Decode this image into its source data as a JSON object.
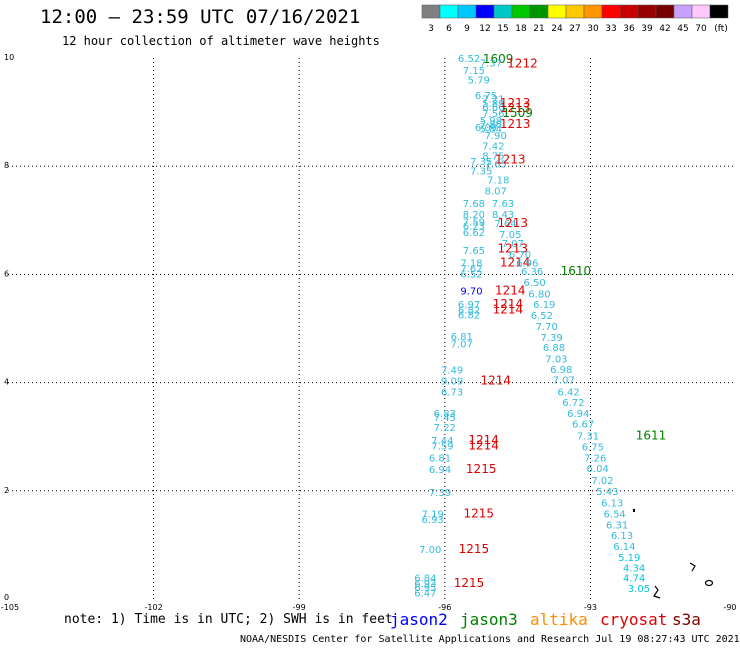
{
  "title": "12:00 – 23:59 UTC 07/16/2021",
  "subtitle": "12 hour collection of altimeter wave heights",
  "footer": "NOAA/NESDIS Center for Satellite Applications and Research   Jul 19 08:27:43 UTC 2021",
  "note": "note: 1) Time is in UTC; 2) SWH is in feet",
  "legend": {
    "labels": [
      "3",
      "6",
      "9",
      "12",
      "15",
      "18",
      "21",
      "24",
      "27",
      "30",
      "33",
      "36",
      "39",
      "42",
      "45",
      "70",
      "(ft)"
    ],
    "colors": [
      "#808080",
      "#00ffff",
      "#00c8ff",
      "#0000ff",
      "#00c8c8",
      "#00c800",
      "#009600",
      "#ffff00",
      "#ffc800",
      "#ff9600",
      "#ff0000",
      "#c80000",
      "#960000",
      "#780000",
      "#c8a0ff",
      "#ffc8ff",
      "#000000"
    ]
  },
  "satellites": [
    {
      "name": "jason2",
      "color": "#0000ff"
    },
    {
      "name": "jason3",
      "color": "#008000"
    },
    {
      "name": "altika",
      "color": "#ff8c00"
    },
    {
      "name": "cryosat",
      "color": "#e00000"
    },
    {
      "name": "s3a",
      "color": "#800000"
    }
  ],
  "axes": {
    "x_ticks": [
      "-105",
      "-102",
      "-99",
      "-96",
      "-93",
      "-90"
    ],
    "y_ticks": [
      "0",
      "2",
      "4",
      "6",
      "8",
      "10"
    ]
  },
  "chart_data": {
    "type": "scatter",
    "x_range": [
      -105,
      -90
    ],
    "y_range": [
      0,
      10
    ],
    "points": [
      {
        "x": -95.5,
        "y": 10.0,
        "t": "6.52",
        "c": "#33bbdd"
      },
      {
        "x": -94.9,
        "y": 9.98,
        "t": "1609",
        "c": "#008000"
      },
      {
        "x": -95.05,
        "y": 9.92,
        "t": "7.37",
        "c": "#33bbdd"
      },
      {
        "x": -94.4,
        "y": 9.9,
        "t": "1212",
        "c": "#e00000"
      },
      {
        "x": -95.4,
        "y": 9.78,
        "t": "7.15",
        "c": "#33bbdd"
      },
      {
        "x": -95.3,
        "y": 9.6,
        "t": "5.79",
        "c": "#33bbdd"
      },
      {
        "x": -95.15,
        "y": 9.32,
        "t": "6.75",
        "c": "#33bbdd"
      },
      {
        "x": -95.0,
        "y": 9.25,
        "t": "7.21",
        "c": "#33bbdd"
      },
      {
        "x": -95.0,
        "y": 9.17,
        "t": "5.89",
        "c": "#33bbdd"
      },
      {
        "x": -95.0,
        "y": 9.1,
        "t": "6.66",
        "c": "#33bbdd"
      },
      {
        "x": -94.55,
        "y": 9.17,
        "t": "1213",
        "c": "#e00000"
      },
      {
        "x": -94.55,
        "y": 9.08,
        "t": "1213",
        "c": "#e00000"
      },
      {
        "x": -94.5,
        "y": 8.98,
        "t": "1509",
        "c": "#008000"
      },
      {
        "x": -95.0,
        "y": 8.98,
        "t": "7.56",
        "c": "#33bbdd"
      },
      {
        "x": -95.05,
        "y": 8.85,
        "t": "5.98",
        "c": "#33bbdd"
      },
      {
        "x": -95.05,
        "y": 8.78,
        "t": "7.86",
        "c": "#33bbdd"
      },
      {
        "x": -95.15,
        "y": 8.72,
        "t": "6.09",
        "c": "#33bbdd"
      },
      {
        "x": -95.05,
        "y": 8.7,
        "t": "5.84",
        "c": "#33bbdd"
      },
      {
        "x": -94.55,
        "y": 8.78,
        "t": "1213",
        "c": "#e00000"
      },
      {
        "x": -94.95,
        "y": 8.58,
        "t": "7.90",
        "c": "#33bbdd"
      },
      {
        "x": -95.0,
        "y": 8.38,
        "t": "7.42",
        "c": "#33bbdd"
      },
      {
        "x": -95.0,
        "y": 8.2,
        "t": "8.75",
        "c": "#33bbdd"
      },
      {
        "x": -95.25,
        "y": 8.1,
        "t": "7.35",
        "c": "#33bbdd"
      },
      {
        "x": -94.95,
        "y": 8.05,
        "t": "7.65",
        "c": "#33bbdd"
      },
      {
        "x": -95.25,
        "y": 7.92,
        "t": "7.35",
        "c": "#33bbdd"
      },
      {
        "x": -94.65,
        "y": 8.12,
        "t": "1213",
        "c": "#e00000"
      },
      {
        "x": -94.9,
        "y": 7.75,
        "t": "7.18",
        "c": "#33bbdd"
      },
      {
        "x": -94.95,
        "y": 7.55,
        "t": "8.07",
        "c": "#33bbdd"
      },
      {
        "x": -95.4,
        "y": 7.32,
        "t": "7.68",
        "c": "#33bbdd"
      },
      {
        "x": -94.8,
        "y": 7.32,
        "t": "7.63",
        "c": "#33bbdd"
      },
      {
        "x": -95.4,
        "y": 7.12,
        "t": "8.20",
        "c": "#33bbdd"
      },
      {
        "x": -94.8,
        "y": 7.12,
        "t": "8.43",
        "c": "#33bbdd"
      },
      {
        "x": -95.4,
        "y": 6.98,
        "t": "7.59",
        "c": "#33bbdd"
      },
      {
        "x": -95.4,
        "y": 6.9,
        "t": "6.23",
        "c": "#33bbdd"
      },
      {
        "x": -94.75,
        "y": 6.95,
        "t": "7.64",
        "c": "#33bbdd"
      },
      {
        "x": -95.4,
        "y": 6.78,
        "t": "6.62",
        "c": "#33bbdd"
      },
      {
        "x": -94.6,
        "y": 6.95,
        "t": "1213",
        "c": "#e00000"
      },
      {
        "x": -94.65,
        "y": 6.75,
        "t": "7.05",
        "c": "#33bbdd"
      },
      {
        "x": -94.6,
        "y": 6.58,
        "t": "7.07",
        "c": "#33bbdd"
      },
      {
        "x": -95.4,
        "y": 6.45,
        "t": "7.65",
        "c": "#33bbdd"
      },
      {
        "x": -94.6,
        "y": 6.48,
        "t": "1213",
        "c": "#e00000"
      },
      {
        "x": -94.45,
        "y": 6.38,
        "t": "6.70",
        "c": "#33bbdd"
      },
      {
        "x": -95.45,
        "y": 6.22,
        "t": "7.18",
        "c": "#33bbdd"
      },
      {
        "x": -94.55,
        "y": 6.22,
        "t": "1214",
        "c": "#e00000"
      },
      {
        "x": -94.3,
        "y": 6.22,
        "t": "6.96",
        "c": "#33bbdd"
      },
      {
        "x": -95.45,
        "y": 6.12,
        "t": "7.62",
        "c": "#33bbdd"
      },
      {
        "x": -95.45,
        "y": 6.02,
        "t": "6.52",
        "c": "#33bbdd"
      },
      {
        "x": -94.2,
        "y": 6.06,
        "t": "6.36",
        "c": "#33bbdd"
      },
      {
        "x": -93.3,
        "y": 6.06,
        "t": "1610",
        "c": "#008000"
      },
      {
        "x": -94.15,
        "y": 5.86,
        "t": "6.50",
        "c": "#33bbdd"
      },
      {
        "x": -95.45,
        "y": 5.7,
        "t": "9.70",
        "c": "#0000ff"
      },
      {
        "x": -94.65,
        "y": 5.7,
        "t": "1214",
        "c": "#e00000"
      },
      {
        "x": -94.05,
        "y": 5.65,
        "t": "6.80",
        "c": "#33bbdd"
      },
      {
        "x": -95.5,
        "y": 5.45,
        "t": "6.97",
        "c": "#33bbdd"
      },
      {
        "x": -94.7,
        "y": 5.45,
        "t": "1214",
        "c": "#e00000"
      },
      {
        "x": -94.7,
        "y": 5.35,
        "t": "1214",
        "c": "#e00000"
      },
      {
        "x": -95.5,
        "y": 5.35,
        "t": "6.82",
        "c": "#33bbdd"
      },
      {
        "x": -95.5,
        "y": 5.26,
        "t": "6.82",
        "c": "#33bbdd"
      },
      {
        "x": -93.95,
        "y": 5.45,
        "t": "6.19",
        "c": "#33bbdd"
      },
      {
        "x": -94.0,
        "y": 5.25,
        "t": "6.52",
        "c": "#33bbdd"
      },
      {
        "x": -93.9,
        "y": 5.05,
        "t": "7.70",
        "c": "#33bbdd"
      },
      {
        "x": -95.65,
        "y": 4.86,
        "t": "6.81",
        "c": "#33bbdd"
      },
      {
        "x": -93.8,
        "y": 4.84,
        "t": "7.39",
        "c": "#33bbdd"
      },
      {
        "x": -95.65,
        "y": 4.72,
        "t": "7.07",
        "c": "#33bbdd"
      },
      {
        "x": -93.75,
        "y": 4.66,
        "t": "6.88",
        "c": "#33bbdd"
      },
      {
        "x": -93.7,
        "y": 4.45,
        "t": "7.03",
        "c": "#33bbdd"
      },
      {
        "x": -95.85,
        "y": 4.24,
        "t": "7.49",
        "c": "#33bbdd"
      },
      {
        "x": -93.6,
        "y": 4.25,
        "t": "6.98",
        "c": "#33bbdd"
      },
      {
        "x": -95.85,
        "y": 4.04,
        "t": "9.09",
        "c": "#33bbdd"
      },
      {
        "x": -94.95,
        "y": 4.04,
        "t": "1214",
        "c": "#e00000"
      },
      {
        "x": -93.55,
        "y": 4.06,
        "t": "7.07",
        "c": "#33bbdd"
      },
      {
        "x": -95.85,
        "y": 3.84,
        "t": "6.73",
        "c": "#33bbdd"
      },
      {
        "x": -93.45,
        "y": 3.84,
        "t": "6.42",
        "c": "#33bbdd"
      },
      {
        "x": -93.35,
        "y": 3.64,
        "t": "6.72",
        "c": "#33bbdd"
      },
      {
        "x": -93.25,
        "y": 3.44,
        "t": "6.94",
        "c": "#33bbdd"
      },
      {
        "x": -96.0,
        "y": 3.44,
        "t": "6.83",
        "c": "#33bbdd"
      },
      {
        "x": -96.0,
        "y": 3.36,
        "t": "7.45",
        "c": "#33bbdd"
      },
      {
        "x": -96.0,
        "y": 3.18,
        "t": "7.22",
        "c": "#33bbdd"
      },
      {
        "x": -93.15,
        "y": 3.24,
        "t": "6.67",
        "c": "#33bbdd"
      },
      {
        "x": -96.05,
        "y": 2.94,
        "t": "7.44",
        "c": "#33bbdd"
      },
      {
        "x": -96.05,
        "y": 2.84,
        "t": "7.59",
        "c": "#33bbdd"
      },
      {
        "x": -95.2,
        "y": 2.94,
        "t": "1214",
        "c": "#e00000"
      },
      {
        "x": -95.2,
        "y": 2.84,
        "t": "1214",
        "c": "#e00000"
      },
      {
        "x": -93.05,
        "y": 3.02,
        "t": "7.31",
        "c": "#33bbdd"
      },
      {
        "x": -91.75,
        "y": 3.02,
        "t": "1611",
        "c": "#008000"
      },
      {
        "x": -92.95,
        "y": 2.82,
        "t": "6.75",
        "c": "#33bbdd"
      },
      {
        "x": -96.1,
        "y": 2.62,
        "t": "6.81",
        "c": "#33bbdd"
      },
      {
        "x": -92.9,
        "y": 2.62,
        "t": "7.26",
        "c": "#33bbdd"
      },
      {
        "x": -96.1,
        "y": 2.4,
        "t": "6.94",
        "c": "#33bbdd"
      },
      {
        "x": -95.25,
        "y": 2.4,
        "t": "1215",
        "c": "#e00000"
      },
      {
        "x": -92.85,
        "y": 2.42,
        "t": "6.04",
        "c": "#33bbdd"
      },
      {
        "x": -92.75,
        "y": 2.2,
        "t": "7.02",
        "c": "#33bbdd"
      },
      {
        "x": -96.1,
        "y": 1.98,
        "t": "7.39",
        "c": "#33bbdd"
      },
      {
        "x": -92.65,
        "y": 2.0,
        "t": "5.43",
        "c": "#33bbdd"
      },
      {
        "x": -92.55,
        "y": 1.78,
        "t": "6.13",
        "c": "#33bbdd"
      },
      {
        "x": -96.25,
        "y": 1.58,
        "t": "7.19",
        "c": "#33bbdd"
      },
      {
        "x": -95.3,
        "y": 1.58,
        "t": "1215",
        "c": "#e00000"
      },
      {
        "x": -92.5,
        "y": 1.58,
        "t": "6.54",
        "c": "#33bbdd"
      },
      {
        "x": -96.25,
        "y": 1.48,
        "t": "6.93",
        "c": "#33bbdd"
      },
      {
        "x": -92.45,
        "y": 1.38,
        "t": "6.31",
        "c": "#33bbdd"
      },
      {
        "x": -92.35,
        "y": 1.18,
        "t": "6.13",
        "c": "#33bbdd"
      },
      {
        "x": -96.3,
        "y": 0.92,
        "t": "7.00",
        "c": "#33bbdd"
      },
      {
        "x": -95.4,
        "y": 0.92,
        "t": "1215",
        "c": "#e00000"
      },
      {
        "x": -92.3,
        "y": 0.98,
        "t": "6.14",
        "c": "#33bbdd"
      },
      {
        "x": -92.2,
        "y": 0.78,
        "t": "5.19",
        "c": "#00c8e0"
      },
      {
        "x": -92.1,
        "y": 0.58,
        "t": "4.34",
        "c": "#00c8e0"
      },
      {
        "x": -96.4,
        "y": 0.4,
        "t": "6.84",
        "c": "#33bbdd"
      },
      {
        "x": -92.1,
        "y": 0.4,
        "t": "4.74",
        "c": "#00c8e0"
      },
      {
        "x": -96.4,
        "y": 0.3,
        "t": "6.93",
        "c": "#33bbdd"
      },
      {
        "x": -96.4,
        "y": 0.22,
        "t": "6.95",
        "c": "#33bbdd"
      },
      {
        "x": -95.5,
        "y": 0.3,
        "t": "1215",
        "c": "#e00000"
      },
      {
        "x": -92.0,
        "y": 0.2,
        "t": "3.05",
        "c": "#00c8e0"
      },
      {
        "x": -96.4,
        "y": 0.12,
        "t": "6.47",
        "c": "#33bbdd"
      }
    ]
  }
}
